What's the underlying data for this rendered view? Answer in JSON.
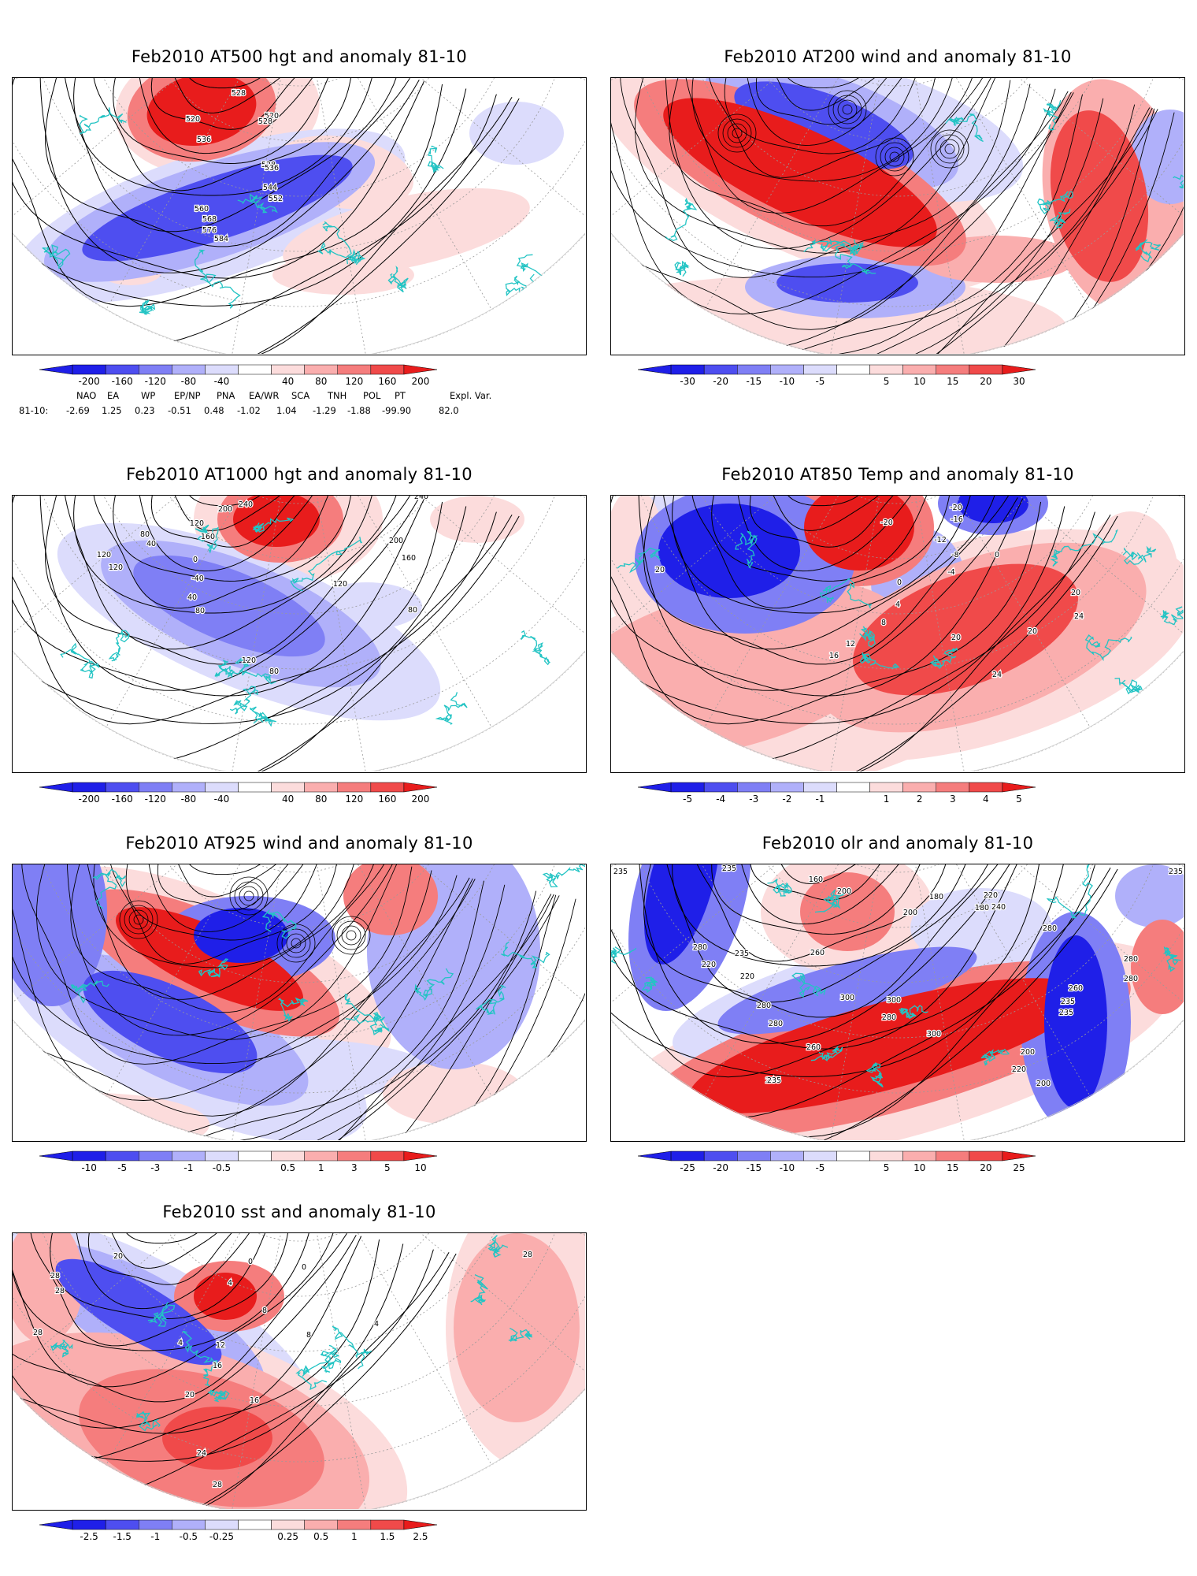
{
  "panels": [
    {
      "id": "hgt500",
      "title": "Feb2010 AT500 hgt and anomaly 81-10",
      "contour_labels": [
        "528",
        "520",
        "536",
        "528",
        "520",
        "528",
        "536",
        "544",
        "552",
        "560",
        "568",
        "576",
        "584"
      ],
      "palette": "hgt",
      "colorbar": [
        "-200",
        "-160",
        "-120",
        "-80",
        "-40",
        "40",
        "80",
        "120",
        "160",
        "200"
      ]
    },
    {
      "id": "wind200",
      "title": "Feb2010 AT200 wind and anomaly 81-10",
      "contour_labels": [],
      "palette": "wind200",
      "colorbar": [
        "-30",
        "-20",
        "-15",
        "-10",
        "-5",
        "5",
        "10",
        "15",
        "20",
        "30"
      ]
    },
    {
      "id": "hgt1000",
      "title": "Feb2010 AT1000 hgt and anomaly 81-10",
      "contour_labels": [
        "240",
        "200",
        "160",
        "120",
        "80",
        "40",
        "0",
        "-40",
        "40",
        "80",
        "120",
        "120",
        "160",
        "200",
        "240",
        "120",
        "80",
        "120",
        "80"
      ],
      "palette": "hgt",
      "colorbar": [
        "-200",
        "-160",
        "-120",
        "-80",
        "-40",
        "40",
        "80",
        "120",
        "160",
        "200"
      ]
    },
    {
      "id": "temp850",
      "title": "Feb2010 AT850 Temp and anomaly 81-10",
      "contour_labels": [
        "-20",
        "-20",
        "-16",
        "-12",
        "-8",
        "-4",
        "0",
        "0",
        "4",
        "8",
        "12",
        "16",
        "20",
        "20",
        "24",
        "24",
        "20",
        "20"
      ],
      "palette": "temp",
      "colorbar": [
        "-5",
        "-4",
        "-3",
        "-2",
        "-1",
        "1",
        "2",
        "3",
        "4",
        "5"
      ]
    },
    {
      "id": "wind925",
      "title": "Feb2010 AT925 wind and anomaly 81-10",
      "contour_labels": [],
      "palette": "wind925",
      "colorbar": [
        "-10",
        "-5",
        "-3",
        "-1",
        "-0.5",
        "0.5",
        "1",
        "3",
        "5",
        "10"
      ]
    },
    {
      "id": "olr",
      "title": "Feb2010 olr and anomaly 81-10",
      "contour_labels": [
        "235",
        "235",
        "160",
        "200",
        "180",
        "200",
        "180",
        "280",
        "240",
        "220",
        "280",
        "235",
        "220",
        "220",
        "260",
        "280",
        "300",
        "300",
        "280",
        "260",
        "240",
        "235",
        "300",
        "280",
        "235",
        "235",
        "220",
        "200",
        "200",
        "260",
        "280",
        "280",
        "235"
      ],
      "palette": "olr",
      "colorbar": [
        "-25",
        "-20",
        "-15",
        "-10",
        "-5",
        "5",
        "10",
        "15",
        "20",
        "25"
      ]
    },
    {
      "id": "sst",
      "title": "Feb2010 sst and anomaly 81-10",
      "contour_labels": [
        "28",
        "28",
        "28",
        "20",
        "0",
        "4",
        "4",
        "8",
        "12",
        "16",
        "16",
        "20",
        "24",
        "28",
        "28",
        "8",
        "4",
        "0"
      ],
      "palette": "sst",
      "colorbar": [
        "-2.5",
        "-1.5",
        "-1",
        "-0.5",
        "-0.25",
        "0.25",
        "0.5",
        "1",
        "1.5",
        "2.5"
      ]
    }
  ],
  "teleconnection_indices": {
    "headers": [
      "NAO",
      "EA",
      "WP",
      "EP/NP",
      "PNA",
      "EA/WR",
      "SCA",
      "TNH",
      "POL",
      "PT",
      "Expl. Var."
    ],
    "row_label": "81-10:",
    "values": [
      "-2.69",
      "1.25",
      "0.23",
      "-0.51",
      "0.48",
      "-1.02",
      "1.04",
      "-1.29",
      "-1.88",
      "-99.90",
      "82.0"
    ]
  },
  "colors": {
    "neg5": "#1f1fe8",
    "neg4": "#4e4ef0",
    "neg3": "#7f7ff5",
    "neg2": "#b0b0fa",
    "neg1": "#dcdcfc",
    "pos1": "#fcdcdc",
    "pos2": "#faaeae",
    "pos3": "#f57d7d",
    "pos4": "#f04a4a",
    "pos5": "#e81c1c",
    "coast": "#23c4c4",
    "contour": "#000000",
    "grid": "#9a9a9a"
  }
}
